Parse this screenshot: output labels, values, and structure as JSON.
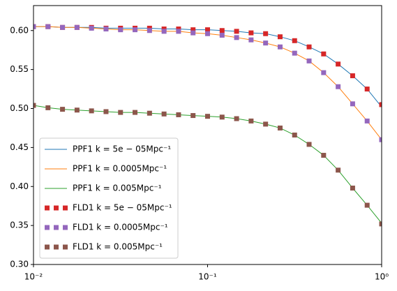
{
  "chart_data": {
    "type": "line",
    "xscale": "log",
    "x": [
      0.01,
      0.012115,
      0.014678,
      0.017783,
      0.021544,
      0.026102,
      0.031623,
      0.038312,
      0.046416,
      0.056234,
      0.068129,
      0.08254,
      0.1,
      0.121153,
      0.14678,
      0.177828,
      0.215443,
      0.261016,
      0.316228,
      0.383119,
      0.464159,
      0.562341,
      0.681292,
      0.825404,
      1.0
    ],
    "series": [
      {
        "name": "PPF1 k = 5e − 05Mpc⁻¹",
        "color": "#1f77b4",
        "style": "line",
        "values": [
          0.605,
          0.605,
          0.604,
          0.604,
          0.604,
          0.603,
          0.603,
          0.603,
          0.603,
          0.602,
          0.602,
          0.601,
          0.601,
          0.6,
          0.599,
          0.597,
          0.596,
          0.592,
          0.587,
          0.579,
          0.57,
          0.557,
          0.542,
          0.525,
          0.502
        ]
      },
      {
        "name": "PPF1 k = 0.0005Mpc⁻¹",
        "color": "#ff7f0e",
        "style": "line",
        "values": [
          0.605,
          0.605,
          0.604,
          0.604,
          0.603,
          0.602,
          0.601,
          0.601,
          0.6,
          0.599,
          0.599,
          0.597,
          0.596,
          0.594,
          0.591,
          0.588,
          0.584,
          0.579,
          0.571,
          0.561,
          0.546,
          0.528,
          0.506,
          0.484,
          0.46
        ]
      },
      {
        "name": "PPF1 k = 0.005Mpc⁻¹",
        "color": "#2ca02c",
        "style": "line",
        "values": [
          0.504,
          0.501,
          0.499,
          0.498,
          0.497,
          0.496,
          0.495,
          0.495,
          0.494,
          0.493,
          0.492,
          0.491,
          0.49,
          0.489,
          0.487,
          0.484,
          0.48,
          0.475,
          0.466,
          0.454,
          0.44,
          0.421,
          0.398,
          0.376,
          0.353
        ]
      },
      {
        "name": "FLD1 k = 5e − 05Mpc⁻¹",
        "color": "#d62728",
        "style": "markers",
        "values": [
          0.605,
          0.605,
          0.604,
          0.604,
          0.604,
          0.603,
          0.603,
          0.603,
          0.603,
          0.602,
          0.602,
          0.601,
          0.601,
          0.6,
          0.599,
          0.597,
          0.596,
          0.592,
          0.587,
          0.579,
          0.57,
          0.557,
          0.542,
          0.525,
          0.505
        ]
      },
      {
        "name": "FLD1 k = 0.0005Mpc⁻¹",
        "color": "#9467bd",
        "style": "markers",
        "values": [
          0.605,
          0.605,
          0.604,
          0.604,
          0.603,
          0.602,
          0.601,
          0.601,
          0.6,
          0.599,
          0.599,
          0.597,
          0.596,
          0.594,
          0.591,
          0.588,
          0.584,
          0.579,
          0.571,
          0.561,
          0.546,
          0.528,
          0.506,
          0.484,
          0.46
        ]
      },
      {
        "name": "FLD1 k = 0.005Mpc⁻¹",
        "color": "#8c564b",
        "style": "markers",
        "values": [
          0.504,
          0.501,
          0.499,
          0.498,
          0.497,
          0.496,
          0.495,
          0.495,
          0.494,
          0.493,
          0.492,
          0.491,
          0.49,
          0.489,
          0.487,
          0.484,
          0.48,
          0.475,
          0.466,
          0.454,
          0.44,
          0.421,
          0.398,
          0.376,
          0.352
        ]
      }
    ],
    "xlim": [
      0.01,
      1
    ],
    "xticks": [
      {
        "value": 0.01,
        "label": "10⁻²"
      },
      {
        "value": 0.1,
        "label": "10⁻¹"
      },
      {
        "value": 1,
        "label": "10⁰"
      }
    ],
    "ylim": [
      0.3,
      0.632
    ],
    "yticks": [
      {
        "value": 0.3,
        "label": "0.30"
      },
      0.35,
      {
        "value": 0.4,
        "label": "0.40"
      },
      0.45,
      {
        "value": 0.5,
        "label": "0.50"
      },
      0.55,
      {
        "value": 0.6,
        "label": "0.60"
      }
    ],
    "legend": "lower left"
  }
}
